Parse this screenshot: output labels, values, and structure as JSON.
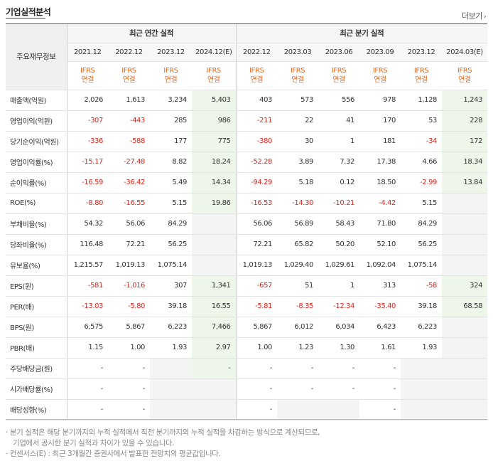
{
  "title": "기업실적분석",
  "more_label": "더보기",
  "headers": {
    "row_head": "주요재무정보",
    "annual_group": "최근 연간 실적",
    "quarter_group": "최근 분기 실적",
    "periods": [
      "2021.12",
      "2022.12",
      "2023.12",
      "2024.12(E)",
      "2022.12",
      "2023.03",
      "2023.06",
      "2023.09",
      "2023.12",
      "2024.03(E)"
    ],
    "std_line1": "IFRS",
    "std_line2": "연결"
  },
  "rows": [
    {
      "label": "매출액(억원)",
      "values": [
        "2,026",
        "1,613",
        "3,234",
        "5,403",
        "403",
        "573",
        "556",
        "978",
        "1,128",
        "1,243"
      ]
    },
    {
      "label": "영업이익(억원)",
      "values": [
        "-307",
        "-443",
        "285",
        "986",
        "-211",
        "22",
        "41",
        "170",
        "53",
        "228"
      ]
    },
    {
      "label": "당기순이익(억원)",
      "values": [
        "-336",
        "-588",
        "177",
        "775",
        "-380",
        "30",
        "1",
        "181",
        "-34",
        "172"
      ]
    },
    {
      "label": "영업이익률(%)",
      "values": [
        "-15.17",
        "-27.48",
        "8.82",
        "18.24",
        "-52.28",
        "3.89",
        "7.32",
        "17.38",
        "4.66",
        "18.34"
      ]
    },
    {
      "label": "순이익률(%)",
      "values": [
        "-16.59",
        "-36.42",
        "5.49",
        "14.34",
        "-94.29",
        "5.18",
        "0.12",
        "18.50",
        "-2.99",
        "13.84"
      ]
    },
    {
      "label": "ROE(%)",
      "values": [
        "-8.80",
        "-16.55",
        "5.15",
        "19.86",
        "-16.53",
        "-14.30",
        "-10.21",
        "-4.42",
        "5.15",
        ""
      ]
    },
    {
      "label": "부채비율(%)",
      "values": [
        "54.32",
        "56.06",
        "84.29",
        "",
        "56.06",
        "56.89",
        "58.43",
        "71.80",
        "84.29",
        ""
      ]
    },
    {
      "label": "당좌비율(%)",
      "values": [
        "116.48",
        "72.21",
        "56.25",
        "",
        "72.21",
        "65.82",
        "50.20",
        "52.10",
        "56.25",
        ""
      ]
    },
    {
      "label": "유보율(%)",
      "values": [
        "1,215.57",
        "1,019.13",
        "1,075.14",
        "",
        "1,019.13",
        "1,029.40",
        "1,029.61",
        "1,092.04",
        "1,075.14",
        ""
      ]
    },
    {
      "label": "EPS(원)",
      "values": [
        "-581",
        "-1,016",
        "307",
        "1,341",
        "-657",
        "51",
        "1",
        "313",
        "-58",
        "324"
      ]
    },
    {
      "label": "PER(배)",
      "values": [
        "-13.03",
        "-5.80",
        "39.18",
        "16.55",
        "-5.81",
        "-8.35",
        "-12.34",
        "-35.40",
        "39.18",
        "68.58"
      ]
    },
    {
      "label": "BPS(원)",
      "values": [
        "6,575",
        "5,867",
        "6,223",
        "7,466",
        "5,867",
        "6,012",
        "6,034",
        "6,423",
        "6,223",
        ""
      ]
    },
    {
      "label": "PBR(배)",
      "values": [
        "1.15",
        "1.00",
        "1.93",
        "2.97",
        "1.00",
        "1.23",
        "1.30",
        "1.61",
        "1.93",
        ""
      ]
    },
    {
      "label": "주당배당금(원)",
      "values": [
        "-",
        "-",
        "",
        "-",
        "-",
        "-",
        "-",
        "-",
        "",
        ""
      ]
    },
    {
      "label": "시가배당률(%)",
      "values": [
        "-",
        "-",
        "",
        "",
        "-",
        "-",
        "-",
        "-",
        "",
        ""
      ]
    },
    {
      "label": "배당성향(%)",
      "values": [
        "-",
        "-",
        "",
        "",
        "-",
        "",
        "",
        "-",
        "",
        ""
      ]
    }
  ],
  "notes": [
    "· 분기 실적은 해당 분기까지의 누적 실적에서 직전 분기까지의 누적 실적을 차감하는 방식으로 계산되므로,",
    "기업에서 공시한 분기 실적과 차이가 있을 수 있습니다.",
    "· 컨센서스(E) : 최근 3개월간 증권사에서 발표한 전망치의 평균값입니다."
  ]
}
